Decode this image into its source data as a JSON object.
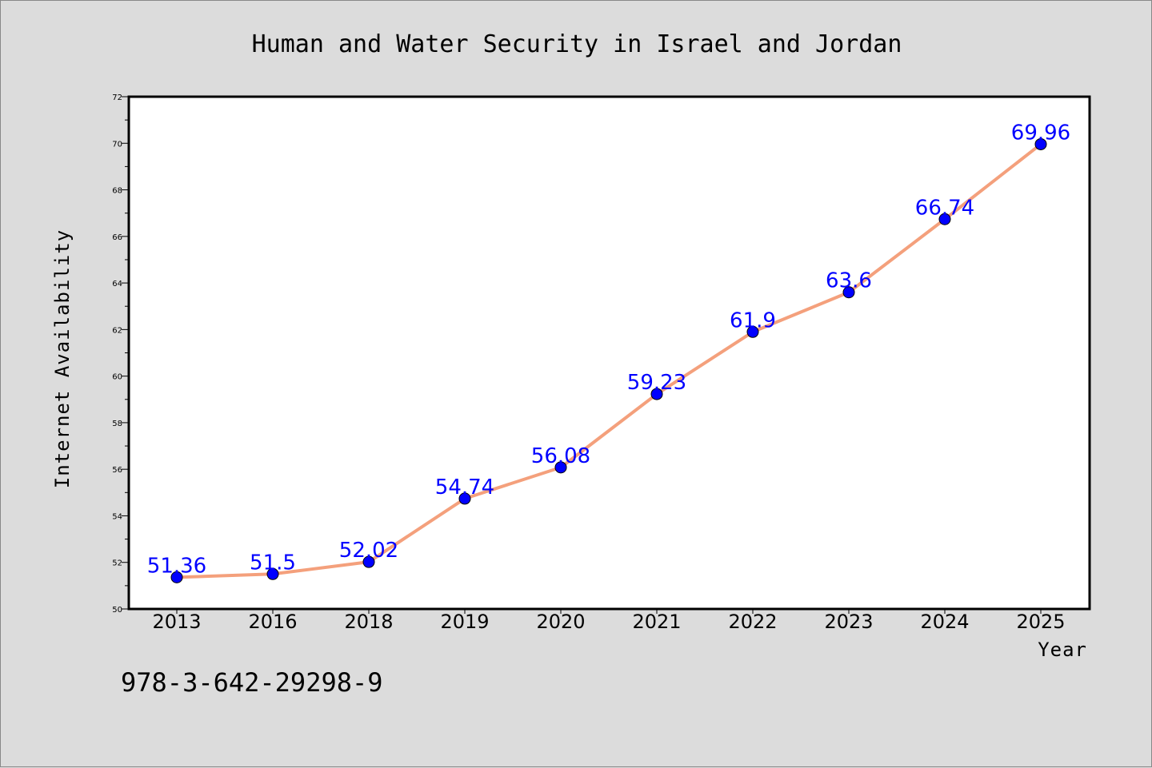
{
  "chart_data": {
    "type": "line",
    "title": "Human and Water Security in Israel and Jordan",
    "xlabel": "Year",
    "ylabel": "Internet Availability",
    "categories": [
      "2013",
      "2016",
      "2018",
      "2019",
      "2020",
      "2021",
      "2022",
      "2023",
      "2024",
      "2025"
    ],
    "series": [
      {
        "values": [
          51.36,
          51.5,
          52.02,
          54.74,
          56.08,
          59.23,
          61.9,
          63.6,
          66.74,
          69.96
        ],
        "labels": [
          "51.36",
          "51.5",
          "52.02",
          "54.74",
          "56.08",
          "59.23",
          "61.9",
          "63.6",
          "66.74",
          "69.96"
        ],
        "line_color": "#f4a07c",
        "marker_color": "#0000ff"
      }
    ],
    "ylim": [
      50,
      72
    ],
    "yticks": [
      "50",
      "52",
      "54",
      "56",
      "58",
      "60",
      "62",
      "64",
      "66",
      "68",
      "70",
      "72"
    ],
    "grid": false,
    "legend": "none"
  },
  "footer_text": "978-3-642-29298-9",
  "colors": {
    "background": "#dcdcdc",
    "plot_background": "#ffffff",
    "line": "#f4a07c",
    "marker": "#0000ff",
    "data_label": "#0000ff"
  }
}
